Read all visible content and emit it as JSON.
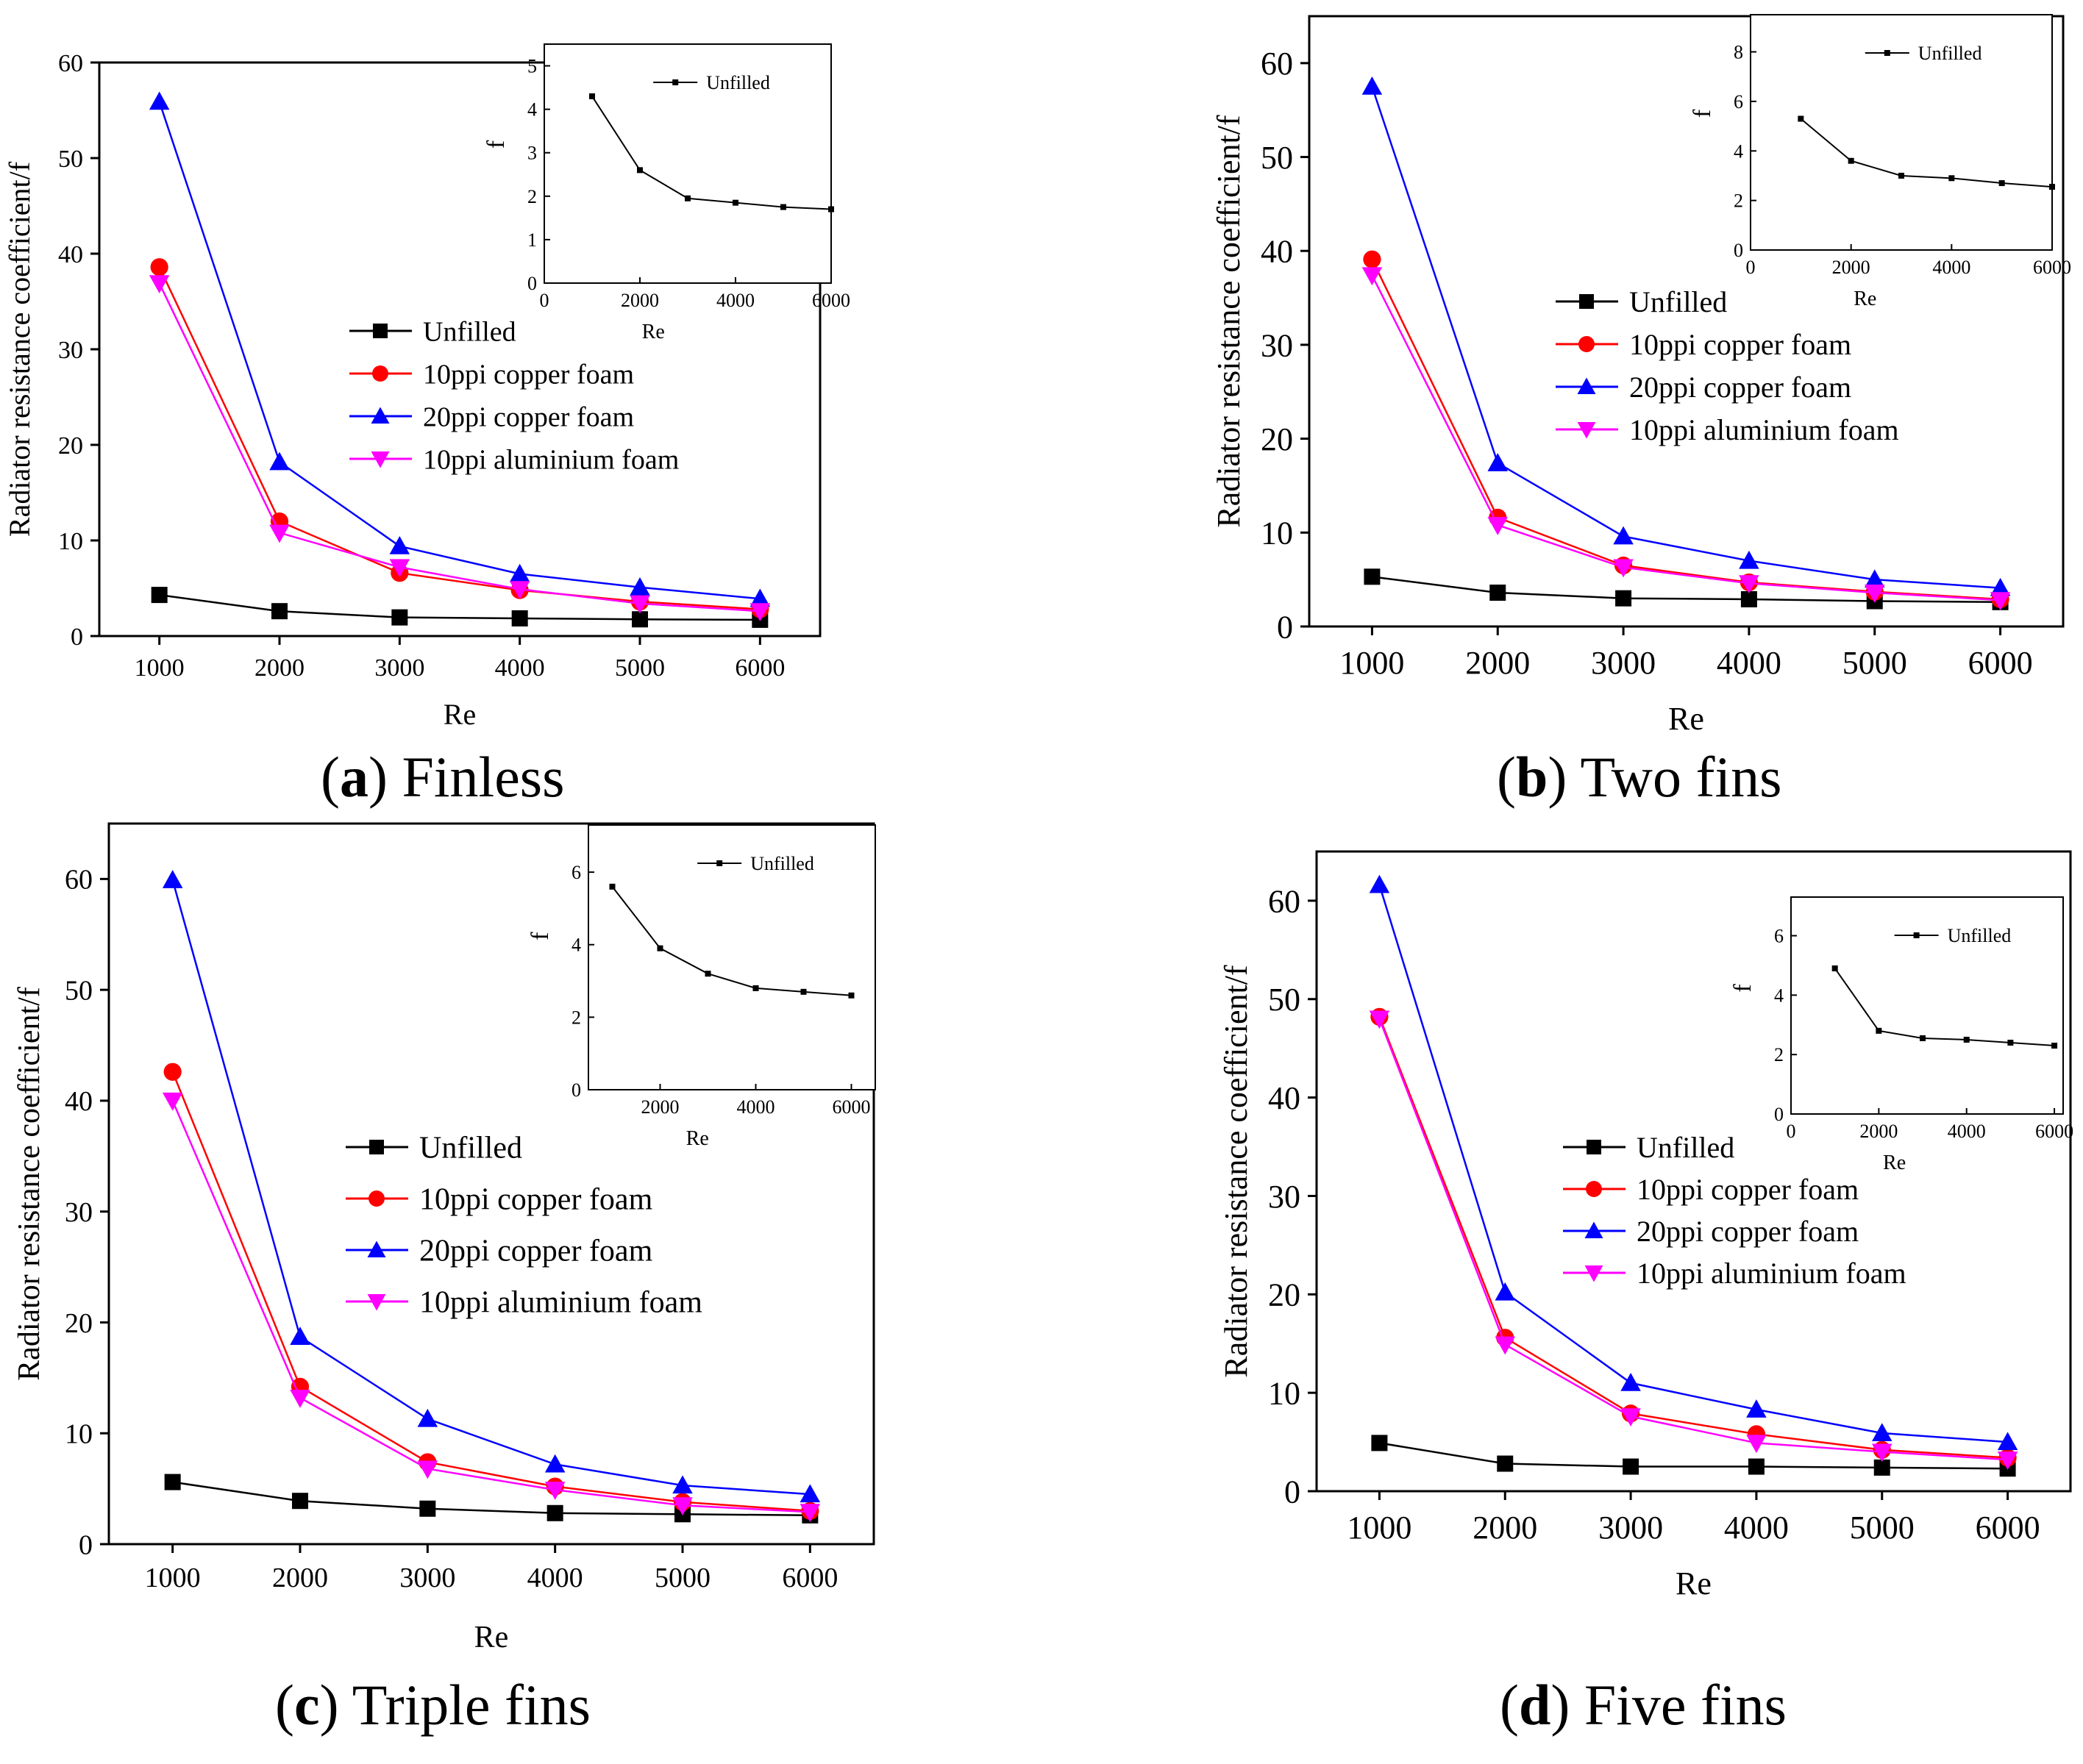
{
  "figure": {
    "series_names": [
      "Unfilled",
      "10ppi copper foam",
      "20ppi copper foam",
      "10ppi aluminium foam"
    ],
    "series_colors": [
      "#000000",
      "#ff0000",
      "#0000ff",
      "#ff00ff"
    ],
    "series_markers": [
      "square",
      "circle",
      "triangle-up",
      "triangle-down"
    ]
  },
  "chart_data": [
    {
      "id": "a",
      "type": "line",
      "caption_letter": "a",
      "caption_text": "Finless",
      "xlabel": "Re",
      "ylabel": "Radiator resistance coefficient/f",
      "x": [
        1000,
        2000,
        3000,
        4000,
        5000,
        6000
      ],
      "xticks": [
        "1000",
        "2000",
        "3000",
        "4000",
        "5000",
        "6000"
      ],
      "xlim": [
        500,
        6500
      ],
      "ylim": [
        0,
        60
      ],
      "yticks": [
        0,
        10,
        20,
        30,
        40,
        50,
        60
      ],
      "legend": "center-right",
      "series": [
        {
          "name": "Unfilled",
          "values": [
            4.3,
            2.6,
            1.95,
            1.85,
            1.75,
            1.7
          ]
        },
        {
          "name": "10ppi copper foam",
          "values": [
            38.6,
            12.0,
            6.6,
            4.8,
            3.6,
            2.8
          ]
        },
        {
          "name": "20ppi copper foam",
          "values": [
            55.9,
            18.2,
            9.4,
            6.5,
            5.1,
            3.9
          ]
        },
        {
          "name": "10ppi aluminium foam",
          "values": [
            36.9,
            10.8,
            7.2,
            4.9,
            3.4,
            2.6
          ]
        }
      ],
      "inset": {
        "xlabel": "Re",
        "ylabel": "f",
        "x": [
          1000,
          2000,
          3000,
          4000,
          5000,
          6000
        ],
        "values": [
          4.3,
          2.6,
          1.95,
          1.85,
          1.75,
          1.7
        ],
        "series_name": "Unfilled",
        "xlim": [
          0,
          6000
        ],
        "ylim": [
          0,
          5.5
        ],
        "xticks": [
          0,
          2000,
          4000,
          6000
        ],
        "yticks": [
          0,
          1,
          2,
          3,
          4,
          5
        ]
      }
    },
    {
      "id": "b",
      "type": "line",
      "caption_letter": "b",
      "caption_text": "Two fins",
      "xlabel": "Re",
      "ylabel": "Radiator resistance coefficient/f",
      "x": [
        1000,
        2000,
        3000,
        4000,
        5000,
        6000
      ],
      "xticks": [
        "1000",
        "2000",
        "3000",
        "4000",
        "5000",
        "6000"
      ],
      "xlim": [
        500,
        6500
      ],
      "ylim": [
        0,
        65
      ],
      "yticks": [
        0,
        10,
        20,
        30,
        40,
        50,
        60
      ],
      "legend": "center-right",
      "series": [
        {
          "name": "Unfilled",
          "values": [
            5.3,
            3.6,
            3.0,
            2.9,
            2.7,
            2.6
          ]
        },
        {
          "name": "10ppi copper foam",
          "values": [
            39.1,
            11.6,
            6.5,
            4.7,
            3.7,
            2.9
          ]
        },
        {
          "name": "20ppi copper foam",
          "values": [
            57.5,
            17.4,
            9.6,
            7.0,
            5.0,
            4.1
          ]
        },
        {
          "name": "10ppi aluminium foam",
          "values": [
            37.4,
            10.8,
            6.3,
            4.6,
            3.6,
            2.8
          ]
        }
      ],
      "inset": {
        "xlabel": "Re",
        "ylabel": "f",
        "x": [
          1000,
          2000,
          3000,
          4000,
          5000,
          6000
        ],
        "values": [
          5.3,
          3.6,
          3.0,
          2.9,
          2.7,
          2.55
        ],
        "series_name": "Unfilled",
        "xlim": [
          0,
          6000
        ],
        "ylim": [
          0,
          9.5
        ],
        "xticks": [
          0,
          2000,
          4000,
          6000
        ],
        "yticks": [
          0,
          2,
          4,
          6,
          8
        ]
      }
    },
    {
      "id": "c",
      "type": "line",
      "caption_letter": "c",
      "caption_text": "Triple fins",
      "xlabel": "Re",
      "ylabel": "Radiator resistance coefficient/f",
      "x": [
        1000,
        2000,
        3000,
        4000,
        5000,
        6000
      ],
      "xticks": [
        "1000",
        "2000",
        "3000",
        "4000",
        "5000",
        "6000"
      ],
      "xlim": [
        500,
        6500
      ],
      "ylim": [
        0,
        65
      ],
      "yticks": [
        0,
        10,
        20,
        30,
        40,
        50,
        60
      ],
      "legend": "center-right",
      "series": [
        {
          "name": "Unfilled",
          "values": [
            5.6,
            3.9,
            3.2,
            2.8,
            2.7,
            2.6
          ]
        },
        {
          "name": "10ppi copper foam",
          "values": [
            42.6,
            14.2,
            7.4,
            5.2,
            3.8,
            3.0
          ]
        },
        {
          "name": "20ppi copper foam",
          "values": [
            59.9,
            18.7,
            11.3,
            7.2,
            5.3,
            4.5
          ]
        },
        {
          "name": "10ppi aluminium foam",
          "values": [
            40.0,
            13.2,
            6.8,
            4.9,
            3.5,
            2.9
          ]
        }
      ],
      "inset": {
        "xlabel": "Re",
        "ylabel": "f",
        "x": [
          1000,
          2000,
          3000,
          4000,
          5000,
          6000
        ],
        "values": [
          5.6,
          3.9,
          3.2,
          2.8,
          2.7,
          2.6
        ],
        "series_name": "Unfilled",
        "xlim": [
          500,
          6500
        ],
        "ylim": [
          0,
          7.3
        ],
        "xticks": [
          2000,
          4000,
          6000
        ],
        "yticks": [
          0,
          2,
          4,
          6
        ]
      }
    },
    {
      "id": "d",
      "type": "line",
      "caption_letter": "d",
      "caption_text": "Five fins",
      "xlabel": "Re",
      "ylabel": "Radiator resistance coefficient/f",
      "x": [
        1000,
        2000,
        3000,
        4000,
        5000,
        6000
      ],
      "xticks": [
        "1000",
        "2000",
        "3000",
        "4000",
        "5000",
        "6000"
      ],
      "xlim": [
        500,
        6500
      ],
      "ylim": [
        0,
        65
      ],
      "yticks": [
        0,
        10,
        20,
        30,
        40,
        50,
        60
      ],
      "legend": "center-right",
      "series": [
        {
          "name": "Unfilled",
          "values": [
            4.9,
            2.8,
            2.5,
            2.5,
            2.4,
            2.3
          ]
        },
        {
          "name": "10ppi copper foam",
          "values": [
            48.2,
            15.6,
            7.9,
            5.8,
            4.2,
            3.4
          ]
        },
        {
          "name": "20ppi copper foam",
          "values": [
            61.6,
            20.2,
            11.0,
            8.3,
            5.9,
            5.0
          ]
        },
        {
          "name": "10ppi aluminium foam",
          "values": [
            48.0,
            14.9,
            7.6,
            4.9,
            4.0,
            3.2
          ]
        }
      ],
      "inset": {
        "xlabel": "Re",
        "ylabel": "f",
        "x": [
          1000,
          2000,
          3000,
          4000,
          5000,
          6000
        ],
        "values": [
          4.9,
          2.8,
          2.55,
          2.5,
          2.4,
          2.3
        ],
        "series_name": "Unfilled",
        "xlim": [
          0,
          6200
        ],
        "ylim": [
          0,
          7.3
        ],
        "xticks": [
          0,
          2000,
          4000,
          6000
        ],
        "yticks": [
          0,
          2,
          4,
          6
        ]
      }
    }
  ]
}
